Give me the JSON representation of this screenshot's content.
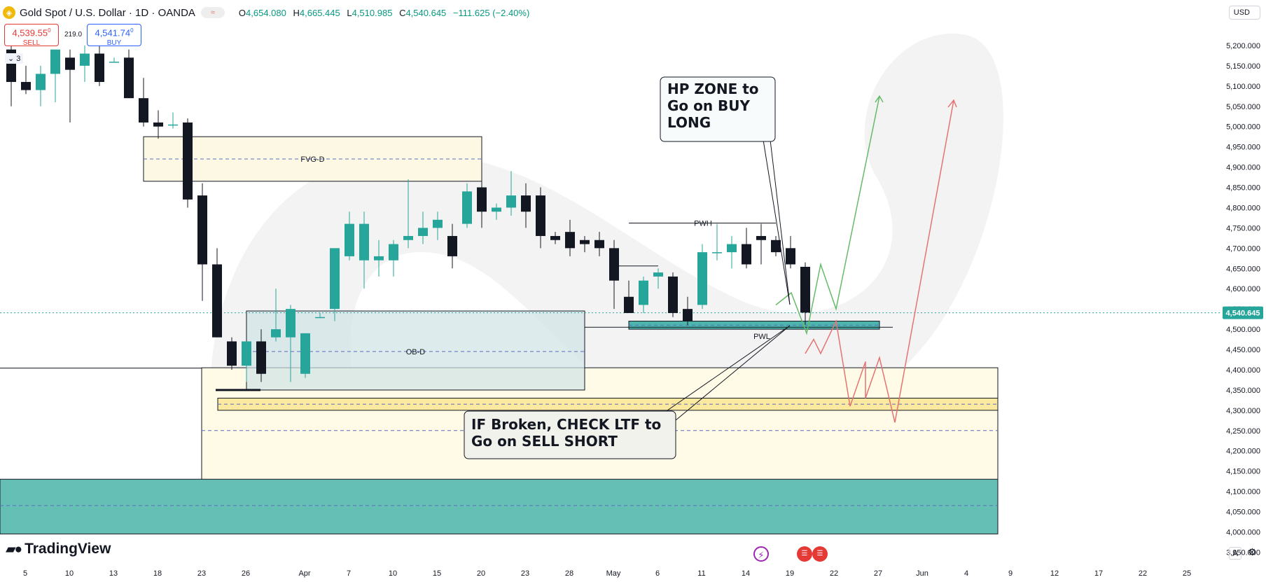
{
  "header": {
    "symbol": "Gold Spot / U.S. Dollar · 1D · OANDA",
    "icon": "gold-coin-icon",
    "open_label": "O",
    "open": "4,654.080",
    "high_label": "H",
    "high": "4,665.445",
    "low_label": "L",
    "low": "4,510.985",
    "close_label": "C",
    "close": "4,540.645",
    "change": "−111.625 (−2.40%)",
    "wave_glyph": "≈"
  },
  "trade": {
    "sell_price": "4,539.55",
    "sell_sup": "0",
    "sell_label": "SELL",
    "buy_price": "4,541.74",
    "buy_sup": "0",
    "buy_label": "BUY",
    "spread": "219.0",
    "lots": "3"
  },
  "currency": "USD",
  "brand": "TradingView",
  "corner_button": "A",
  "colors": {
    "up": "#26a69a",
    "down": "#131722",
    "accent": "#2962ff",
    "sell": "#e53935",
    "price_tag": "#26a69a"
  },
  "chart_data": {
    "type": "candlestick",
    "title": "Gold Spot / U.S. Dollar · 1D · OANDA",
    "ylim": [
      3930,
      5250
    ],
    "y_ticks": [
      "5,200.000",
      "5,150.000",
      "5,100.000",
      "5,050.000",
      "5,000.000",
      "4,950.000",
      "4,900.000",
      "4,850.000",
      "4,800.000",
      "4,750.000",
      "4,700.000",
      "4,650.000",
      "4,600.000",
      "4,550.000",
      "4,500.000",
      "4,450.000",
      "4,400.000",
      "4,350.000",
      "4,300.000",
      "4,250.000",
      "4,200.000",
      "4,150.000",
      "4,100.000",
      "4,050.000",
      "4,000.000",
      "3,950.000"
    ],
    "x_ticks": [
      {
        "i": 0,
        "label": "5"
      },
      {
        "i": 3,
        "label": "10"
      },
      {
        "i": 6,
        "label": "13"
      },
      {
        "i": 9,
        "label": "18"
      },
      {
        "i": 12,
        "label": "23"
      },
      {
        "i": 15,
        "label": "26"
      },
      {
        "i": 19,
        "label": "Apr"
      },
      {
        "i": 22,
        "label": "7"
      },
      {
        "i": 25,
        "label": "10"
      },
      {
        "i": 28,
        "label": "15"
      },
      {
        "i": 31,
        "label": "20"
      },
      {
        "i": 34,
        "label": "23"
      },
      {
        "i": 37,
        "label": "28"
      },
      {
        "i": 40,
        "label": "May"
      },
      {
        "i": 43,
        "label": "6"
      },
      {
        "i": 46,
        "label": "11"
      },
      {
        "i": 49,
        "label": "14"
      },
      {
        "i": 52,
        "label": "19"
      },
      {
        "i": 55,
        "label": "22"
      },
      {
        "i": 58,
        "label": "27"
      },
      {
        "i": 61,
        "label": "Jun"
      },
      {
        "i": 64,
        "label": "4"
      },
      {
        "i": 67,
        "label": "9"
      },
      {
        "i": 70,
        "label": "12"
      },
      {
        "i": 73,
        "label": "17"
      },
      {
        "i": 76,
        "label": "22"
      },
      {
        "i": 79,
        "label": "25"
      }
    ],
    "candles": [
      {
        "o": 5190,
        "h": 5210,
        "l": 5050,
        "c": 5110
      },
      {
        "o": 5110,
        "h": 5150,
        "l": 5080,
        "c": 5090
      },
      {
        "o": 5090,
        "h": 5150,
        "l": 5050,
        "c": 5130
      },
      {
        "o": 5130,
        "h": 5190,
        "l": 5060,
        "c": 5190
      },
      {
        "o": 5170,
        "h": 5190,
        "l": 5010,
        "c": 5140
      },
      {
        "o": 5150,
        "h": 5200,
        "l": 5110,
        "c": 5180
      },
      {
        "o": 5180,
        "h": 5220,
        "l": 5100,
        "c": 5110
      },
      {
        "o": 5160,
        "h": 5170,
        "l": 5160,
        "c": 5160
      },
      {
        "o": 5170,
        "h": 5190,
        "l": 5080,
        "c": 5070
      },
      {
        "o": 5070,
        "h": 5120,
        "l": 5000,
        "c": 5010
      },
      {
        "o": 5010,
        "h": 5040,
        "l": 4970,
        "c": 5000
      },
      {
        "o": 5005,
        "h": 5035,
        "l": 4995,
        "c": 5005
      },
      {
        "o": 5010,
        "h": 5020,
        "l": 4800,
        "c": 4820
      },
      {
        "o": 4830,
        "h": 4860,
        "l": 4570,
        "c": 4660
      },
      {
        "o": 4660,
        "h": 4700,
        "l": 4480,
        "c": 4480
      },
      {
        "o": 4470,
        "h": 4480,
        "l": 4400,
        "c": 4410
      },
      {
        "o": 4410,
        "h": 4470,
        "l": 4370,
        "c": 4470
      },
      {
        "o": 4470,
        "h": 4500,
        "l": 4370,
        "c": 4390
      },
      {
        "o": 4480,
        "h": 4600,
        "l": 4470,
        "c": 4500
      },
      {
        "o": 4480,
        "h": 4560,
        "l": 4370,
        "c": 4550
      },
      {
        "o": 4390,
        "h": 4490,
        "l": 4380,
        "c": 4490
      },
      {
        "o": 4530,
        "h": 4540,
        "l": 4530,
        "c": 4530
      },
      {
        "o": 4550,
        "h": 4690,
        "l": 4520,
        "c": 4700
      },
      {
        "o": 4680,
        "h": 4790,
        "l": 4670,
        "c": 4760
      },
      {
        "o": 4670,
        "h": 4790,
        "l": 4600,
        "c": 4760
      },
      {
        "o": 4670,
        "h": 4720,
        "l": 4630,
        "c": 4680
      },
      {
        "o": 4670,
        "h": 4720,
        "l": 4630,
        "c": 4710
      },
      {
        "o": 4720,
        "h": 4870,
        "l": 4700,
        "c": 4730
      },
      {
        "o": 4730,
        "h": 4790,
        "l": 4710,
        "c": 4750
      },
      {
        "o": 4750,
        "h": 4790,
        "l": 4720,
        "c": 4770
      },
      {
        "o": 4730,
        "h": 4760,
        "l": 4650,
        "c": 4680
      },
      {
        "o": 4760,
        "h": 4860,
        "l": 4750,
        "c": 4840
      },
      {
        "o": 4850,
        "h": 4870,
        "l": 4750,
        "c": 4790
      },
      {
        "o": 4790,
        "h": 4810,
        "l": 4770,
        "c": 4800
      },
      {
        "o": 4800,
        "h": 4890,
        "l": 4780,
        "c": 4830
      },
      {
        "o": 4830,
        "h": 4860,
        "l": 4750,
        "c": 4790
      },
      {
        "o": 4830,
        "h": 4850,
        "l": 4700,
        "c": 4730
      },
      {
        "o": 4730,
        "h": 4740,
        "l": 4710,
        "c": 4720
      },
      {
        "o": 4740,
        "h": 4770,
        "l": 4680,
        "c": 4700
      },
      {
        "o": 4720,
        "h": 4730,
        "l": 4690,
        "c": 4710
      },
      {
        "o": 4720,
        "h": 4740,
        "l": 4680,
        "c": 4700
      },
      {
        "o": 4700,
        "h": 4720,
        "l": 4550,
        "c": 4620
      },
      {
        "o": 4580,
        "h": 4620,
        "l": 4540,
        "c": 4540
      },
      {
        "o": 4560,
        "h": 4630,
        "l": 4540,
        "c": 4620
      },
      {
        "o": 4630,
        "h": 4650,
        "l": 4600,
        "c": 4640
      },
      {
        "o": 4630,
        "h": 4640,
        "l": 4530,
        "c": 4540
      },
      {
        "o": 4550,
        "h": 4580,
        "l": 4510,
        "c": 4520
      },
      {
        "o": 4560,
        "h": 4710,
        "l": 4550,
        "c": 4690
      },
      {
        "o": 4690,
        "h": 4760,
        "l": 4670,
        "c": 4690
      },
      {
        "o": 4690,
        "h": 4730,
        "l": 4650,
        "c": 4710
      },
      {
        "o": 4710,
        "h": 4750,
        "l": 4650,
        "c": 4660
      },
      {
        "o": 4730,
        "h": 4760,
        "l": 4660,
        "c": 4720
      },
      {
        "o": 4720,
        "h": 4730,
        "l": 4680,
        "c": 4690
      },
      {
        "o": 4700,
        "h": 4730,
        "l": 4650,
        "c": 4660
      },
      {
        "o": 4654,
        "h": 4665,
        "l": 4511,
        "c": 4541
      }
    ],
    "zones": [
      {
        "label": "FVG-D",
        "from": 4865,
        "to": 4975,
        "mid": 4920
      },
      {
        "label": "OB-D",
        "from": 4350,
        "to": 4545,
        "mid": 4445
      },
      {
        "label": "PWL",
        "from": 4500,
        "to": 4520,
        "mid": 4510
      },
      {
        "label": "",
        "from": 4100,
        "to": 4405,
        "mid": 4250
      },
      {
        "label": "",
        "from": 4300,
        "to": 4330,
        "mid": 4315
      },
      {
        "label": "",
        "from": 3995,
        "to": 4130,
        "mid": 4065
      }
    ],
    "levels": [
      {
        "label": "PWH",
        "value": 4762
      },
      {
        "label": "",
        "value": 4540.645
      }
    ],
    "price_tag": "4,540.645",
    "annotations": [
      {
        "name": "buy-note",
        "text": "HP ZONE to\nGo on BUY\nLONG"
      },
      {
        "name": "sell-note",
        "text": "IF Broken, CHECK LTF to\nGo on SELL SHORT"
      }
    ]
  }
}
